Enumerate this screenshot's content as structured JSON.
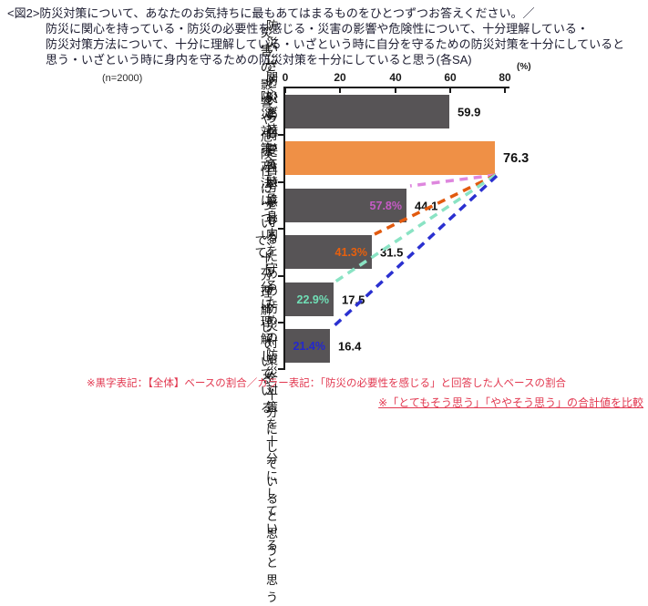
{
  "title": {
    "lines": [
      "<図2>防災対策について、あなたのお気持ちに最もあてはまるものをひとつずつお答えください。／",
      "防災に関心を持っている・防災の必要性を感じる・災害の影響や危険性について、十分理解している・",
      "防災対策方法について、十分に理解している・いざという時に自分を守るための防災対策を十分にしていると",
      "思う・いざという時に身内を守るための防災対策を十分にしていると思う(各SA)"
    ]
  },
  "chart": {
    "n_label": "(n=2000)",
    "x_ticks": [
      "0",
      "20",
      "40",
      "60",
      "80"
    ],
    "unit_label": "(%)",
    "rows": [
      {
        "label": "防災に関心を持っている",
        "value": "59.9"
      },
      {
        "label": "防災の必要性を感じる",
        "value": "76.3"
      },
      {
        "label": "災害の影響や危険性について、\n十分理解している",
        "value": "44.1",
        "sub_value": "57.8%"
      },
      {
        "label": "防災対策方法について、\n十分に理解している",
        "value": "31.5",
        "sub_value": "41.3%"
      },
      {
        "label": "いざという時に自分を守るための\n防災対策を十分にしていると思う",
        "value": "17.5",
        "sub_value": "22.9%"
      },
      {
        "label": "いざという時に身内を守るための\n防災対策を十分にしていると思う",
        "value": "16.4",
        "sub_value": "21.4%"
      }
    ]
  },
  "chart_data": {
    "type": "bar",
    "orientation": "horizontal",
    "title": "防災対策について、あなたのお気持ちに最もあてはまるものをひとつずつお答えください。(各SA)",
    "n": 2000,
    "categories": [
      "防災に関心を持っている",
      "防災の必要性を感じる",
      "災害の影響や危険性について、十分理解している",
      "防災対策方法について、十分に理解している",
      "いざという時に自分を守るための防災対策を十分にしていると思う",
      "いざという時に身内を守るための防災対策を十分にしていると思う"
    ],
    "series": [
      {
        "name": "黒字表記：【全体】ベースの割合",
        "values": [
          59.9,
          76.3,
          44.1,
          31.5,
          17.5,
          16.4
        ]
      },
      {
        "name": "カラー表記：「防災の必要性を感じる」と回答した人ベースの割合",
        "values": [
          null,
          null,
          57.8,
          41.3,
          22.9,
          21.4
        ]
      }
    ],
    "highlighted_category_index": 1,
    "xlim": [
      0,
      80
    ],
    "x_ticks": [
      0,
      20,
      40,
      60,
      80
    ],
    "unit": "%",
    "grid": false,
    "legend": false
  },
  "notes": {
    "base_note": "※黒字表記：【全体】ベースの割合／カラー表記：「防災の必要性を感じる」と回答した人ベースの割合",
    "comparison_note": "※「とてもそう思う」「ややそう思う」の合計値を比較"
  },
  "colors": {
    "bar_gray": "#575456",
    "bar_orange": "#EF9046",
    "label_magenta": "#C55BC5",
    "label_orange": "#E8600D",
    "label_teal": "#70DFB6",
    "label_blue": "#2327CE",
    "line_magenta": "#DE87DE",
    "line_orange": "#E25A0F",
    "line_teal": "#8AE3C4",
    "line_blue": "#2A30D0",
    "note_red": "#E23850",
    "axis_black": "#1a1a1a"
  }
}
